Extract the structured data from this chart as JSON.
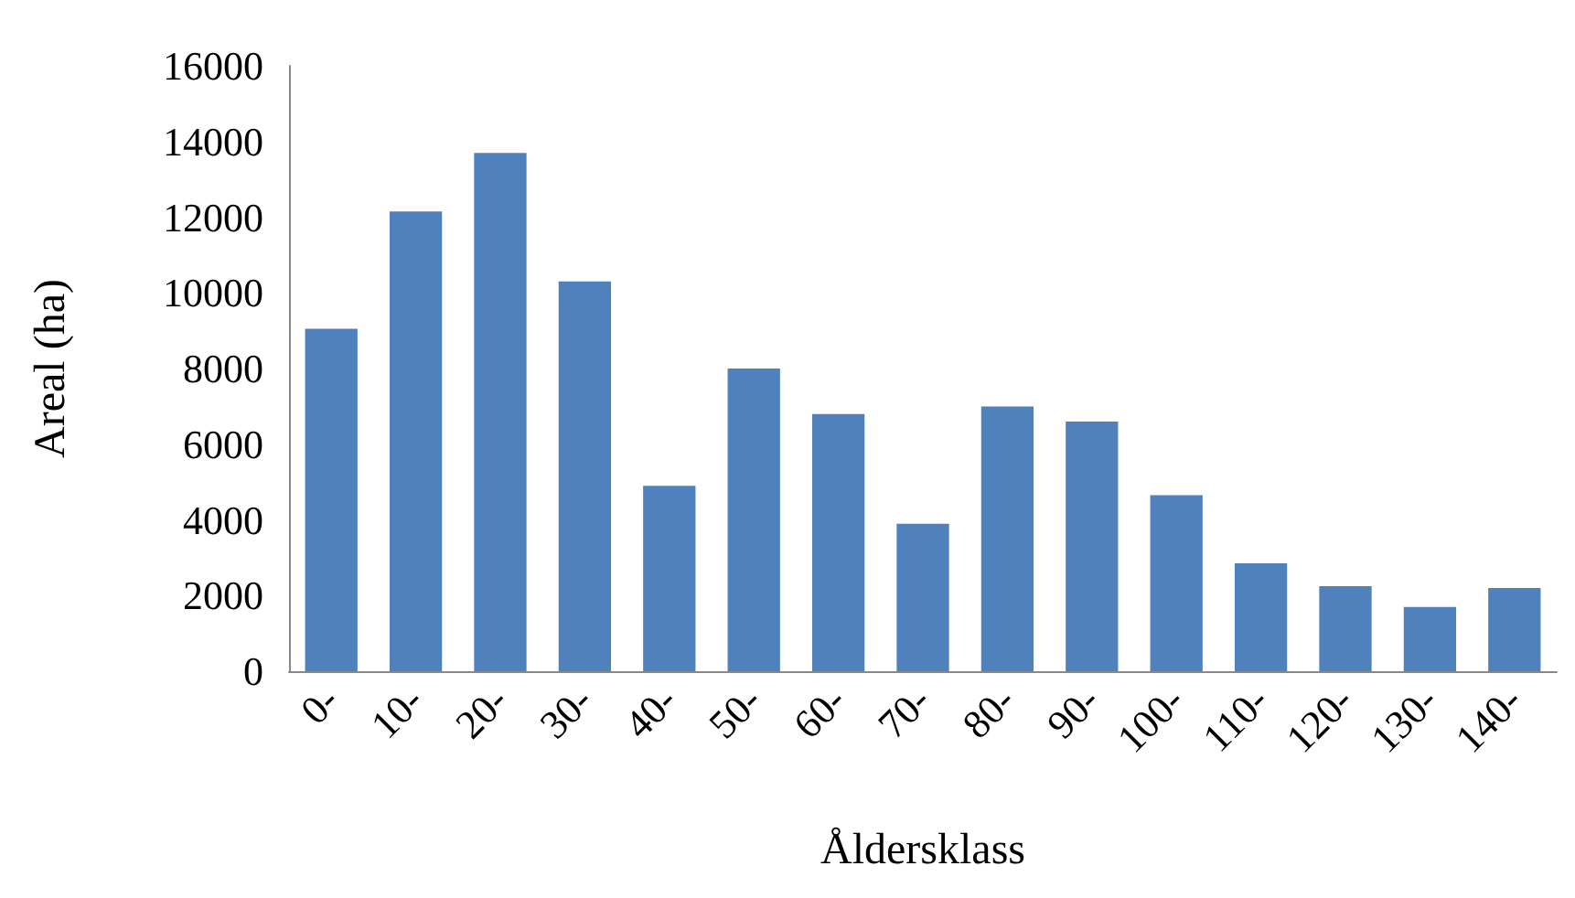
{
  "chart_data": {
    "type": "bar",
    "xlabel": "Åldersklass",
    "ylabel": "Areal (ha)",
    "categories": [
      "0-",
      "10-",
      "20-",
      "30-",
      "40-",
      "50-",
      "60-",
      "70-",
      "80-",
      "90-",
      "100-",
      "110-",
      "120-",
      "130-",
      "140-"
    ],
    "values": [
      9050,
      12150,
      13700,
      10300,
      4900,
      8000,
      6800,
      3900,
      7000,
      6600,
      4650,
      2850,
      2250,
      1700,
      2200
    ],
    "color": "#4f81bd",
    "ylim": [
      0,
      16000
    ],
    "yticks": [
      0,
      2000,
      4000,
      6000,
      8000,
      10000,
      12000,
      14000,
      16000
    ],
    "grid": false
  }
}
